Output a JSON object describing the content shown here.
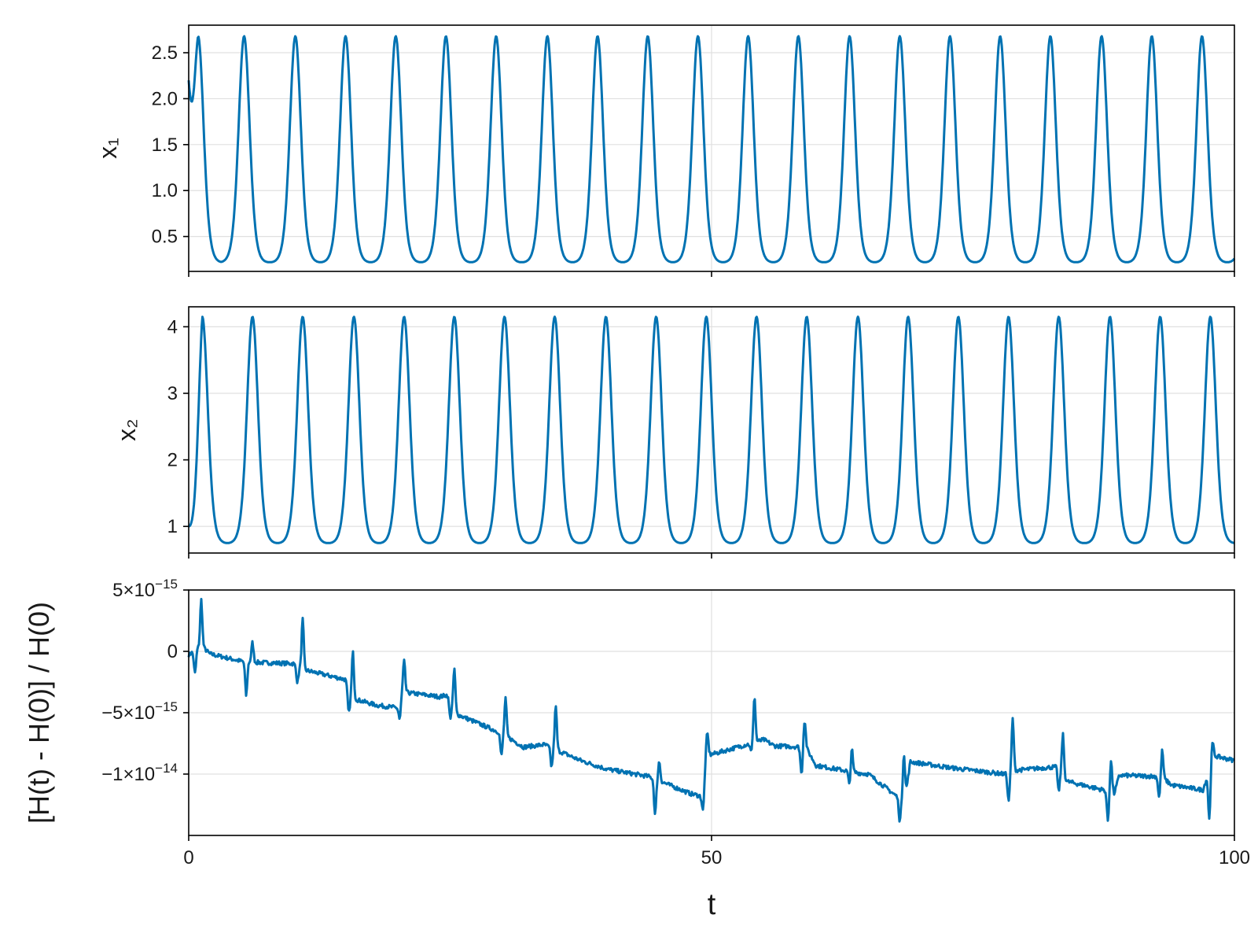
{
  "chart_data": [
    {
      "type": "line",
      "ylabel": "x₁",
      "xlabel": "",
      "xlim": [
        0,
        100
      ],
      "ylim": [
        0.12,
        2.8
      ],
      "yticks": [
        0.5,
        1.0,
        1.5,
        2.0,
        2.5
      ],
      "ytick_labels": [
        "0.5",
        "1.0",
        "1.5",
        "2.0",
        "2.5"
      ],
      "xticks": [
        0,
        50,
        100
      ],
      "grid": true,
      "series": [
        {
          "color": "#0072b2",
          "period": 4.82,
          "peak_times": [
            0.9,
            5.3,
            10.2,
            15.0,
            19.8,
            24.6,
            29.4,
            34.3,
            39.1,
            43.9,
            48.7,
            53.5,
            58.3,
            63.2,
            68.0,
            72.8,
            77.6,
            82.4,
            87.3,
            92.1,
            96.9
          ],
          "max": 2.68,
          "min": 0.22,
          "initial": 2.2,
          "final": 0.35
        }
      ]
    },
    {
      "type": "line",
      "ylabel": "x₂",
      "xlabel": "",
      "xlim": [
        0,
        100
      ],
      "ylim": [
        0.6,
        4.3
      ],
      "yticks": [
        1,
        2,
        3,
        4
      ],
      "ytick_labels": [
        "1",
        "2",
        "3",
        "4"
      ],
      "xticks": [
        0,
        50,
        100
      ],
      "grid": true,
      "series": [
        {
          "color": "#0072b2",
          "period": 4.82,
          "peak_times": [
            1.3,
            6.1,
            10.9,
            15.8,
            20.6,
            25.4,
            30.2,
            35.0,
            39.9,
            44.7,
            49.5,
            54.3,
            59.1,
            64.0,
            68.8,
            73.6,
            78.4,
            83.2,
            88.1,
            92.9,
            97.7
          ],
          "max": 4.15,
          "min": 0.75,
          "initial": 1.0,
          "final": 1.1
        }
      ]
    },
    {
      "type": "line",
      "ylabel": "[H(t) - H(0)] / H(0)",
      "xlabel": "t",
      "xlim": [
        0,
        100
      ],
      "ylim": [
        -1.5e-14,
        5e-15
      ],
      "yticks": [
        5e-15,
        0,
        -5e-15,
        -1e-14
      ],
      "ytick_labels": [
        {
          "mantissa": "5×10",
          "exp": "−15"
        },
        {
          "mantissa": "0",
          "exp": ""
        },
        {
          "mantissa": "−5×10",
          "exp": "−15"
        },
        {
          "mantissa": "−1×10",
          "exp": "−14"
        }
      ],
      "xticks": [
        0,
        50,
        100
      ],
      "xtick_labels": [
        "0",
        "50",
        "100"
      ],
      "grid": true,
      "series": [
        {
          "color": "#0072b2",
          "baseline_x": [
            0,
            1.2,
            2,
            5,
            6.5,
            10,
            11,
            15,
            15.5,
            18,
            20,
            20.3,
            24,
            25,
            25.3,
            30,
            32,
            34,
            37.5,
            40,
            44,
            46,
            48,
            49,
            49.5,
            50,
            55,
            56,
            59,
            60,
            64,
            65,
            68,
            68.5,
            69,
            73,
            74,
            78,
            79,
            83,
            84,
            88,
            88.5,
            89,
            93,
            94,
            97,
            98,
            100
          ],
          "baseline_y": [
            -3e-16,
            5e-16,
            -2e-16,
            -8e-16,
            -9e-16,
            -1e-15,
            -1.5e-15,
            -2.3e-15,
            -3.8e-15,
            -4.4e-15,
            -4.6e-15,
            -3.3e-15,
            -3.7e-15,
            -3.5e-15,
            -5e-15,
            -6.7e-15,
            -7.8e-15,
            -7.6e-15,
            -8.9e-15,
            -9.6e-15,
            -1.02e-14,
            -1.09e-14,
            -1.16e-14,
            -1.18e-14,
            -8.5e-15,
            -8.4e-15,
            -7.2e-15,
            -7.7e-15,
            -7.8e-15,
            -9.3e-15,
            -9.9e-15,
            -1e-14,
            -1.2e-14,
            -1.21e-14,
            -9e-15,
            -9.5e-15,
            -9.6e-15,
            -1e-14,
            -9.7e-15,
            -9.4e-15,
            -1.06e-14,
            -1.14e-14,
            -1.16e-14,
            -1.01e-14,
            -1.02e-14,
            -1.09e-14,
            -1.13e-14,
            -8.5e-15,
            -8.9e-15
          ],
          "spikes": [
            {
              "x": 1.2,
              "y": 4.2e-15
            },
            {
              "x": 0.6,
              "y": -1.8e-15
            },
            {
              "x": 5.5,
              "y": -3.6e-15
            },
            {
              "x": 6.1,
              "y": 7e-16
            },
            {
              "x": 10.4,
              "y": -2.5e-15
            },
            {
              "x": 10.9,
              "y": 2.6e-15
            },
            {
              "x": 15.3,
              "y": -5e-15
            },
            {
              "x": 15.7,
              "y": -1e-16
            },
            {
              "x": 20.2,
              "y": -5.5e-15
            },
            {
              "x": 20.6,
              "y": -8e-16
            },
            {
              "x": 25.0,
              "y": -5.3e-15
            },
            {
              "x": 25.4,
              "y": -1.4e-15
            },
            {
              "x": 29.9,
              "y": -8.5e-15
            },
            {
              "x": 30.3,
              "y": -3.9e-15
            },
            {
              "x": 34.7,
              "y": -9.4e-15
            },
            {
              "x": 35.1,
              "y": -4.5e-15
            },
            {
              "x": 44.6,
              "y": -1.33e-14
            },
            {
              "x": 45.0,
              "y": -9e-15
            },
            {
              "x": 49.2,
              "y": -1.29e-14
            },
            {
              "x": 49.6,
              "y": -6.7e-15
            },
            {
              "x": 53.8,
              "y": -8.2e-15
            },
            {
              "x": 54.1,
              "y": -3.7e-15
            },
            {
              "x": 58.6,
              "y": -1e-14
            },
            {
              "x": 58.9,
              "y": -5.6e-15
            },
            {
              "x": 63.2,
              "y": -1.11e-14
            },
            {
              "x": 63.4,
              "y": -7.8e-15
            },
            {
              "x": 68.0,
              "y": -1.38e-14
            },
            {
              "x": 68.4,
              "y": -8.3e-15
            },
            {
              "x": 78.4,
              "y": -1.22e-14
            },
            {
              "x": 78.8,
              "y": -5.5e-15
            },
            {
              "x": 83.2,
              "y": -1.14e-14
            },
            {
              "x": 83.6,
              "y": -6.8e-15
            },
            {
              "x": 87.9,
              "y": -1.38e-14
            },
            {
              "x": 88.2,
              "y": -8.9e-15
            },
            {
              "x": 92.8,
              "y": -1.19e-14
            },
            {
              "x": 93.1,
              "y": -8.1e-15
            },
            {
              "x": 97.6,
              "y": -1.37e-14
            },
            {
              "x": 97.9,
              "y": -7.5e-15
            }
          ]
        }
      ]
    }
  ]
}
